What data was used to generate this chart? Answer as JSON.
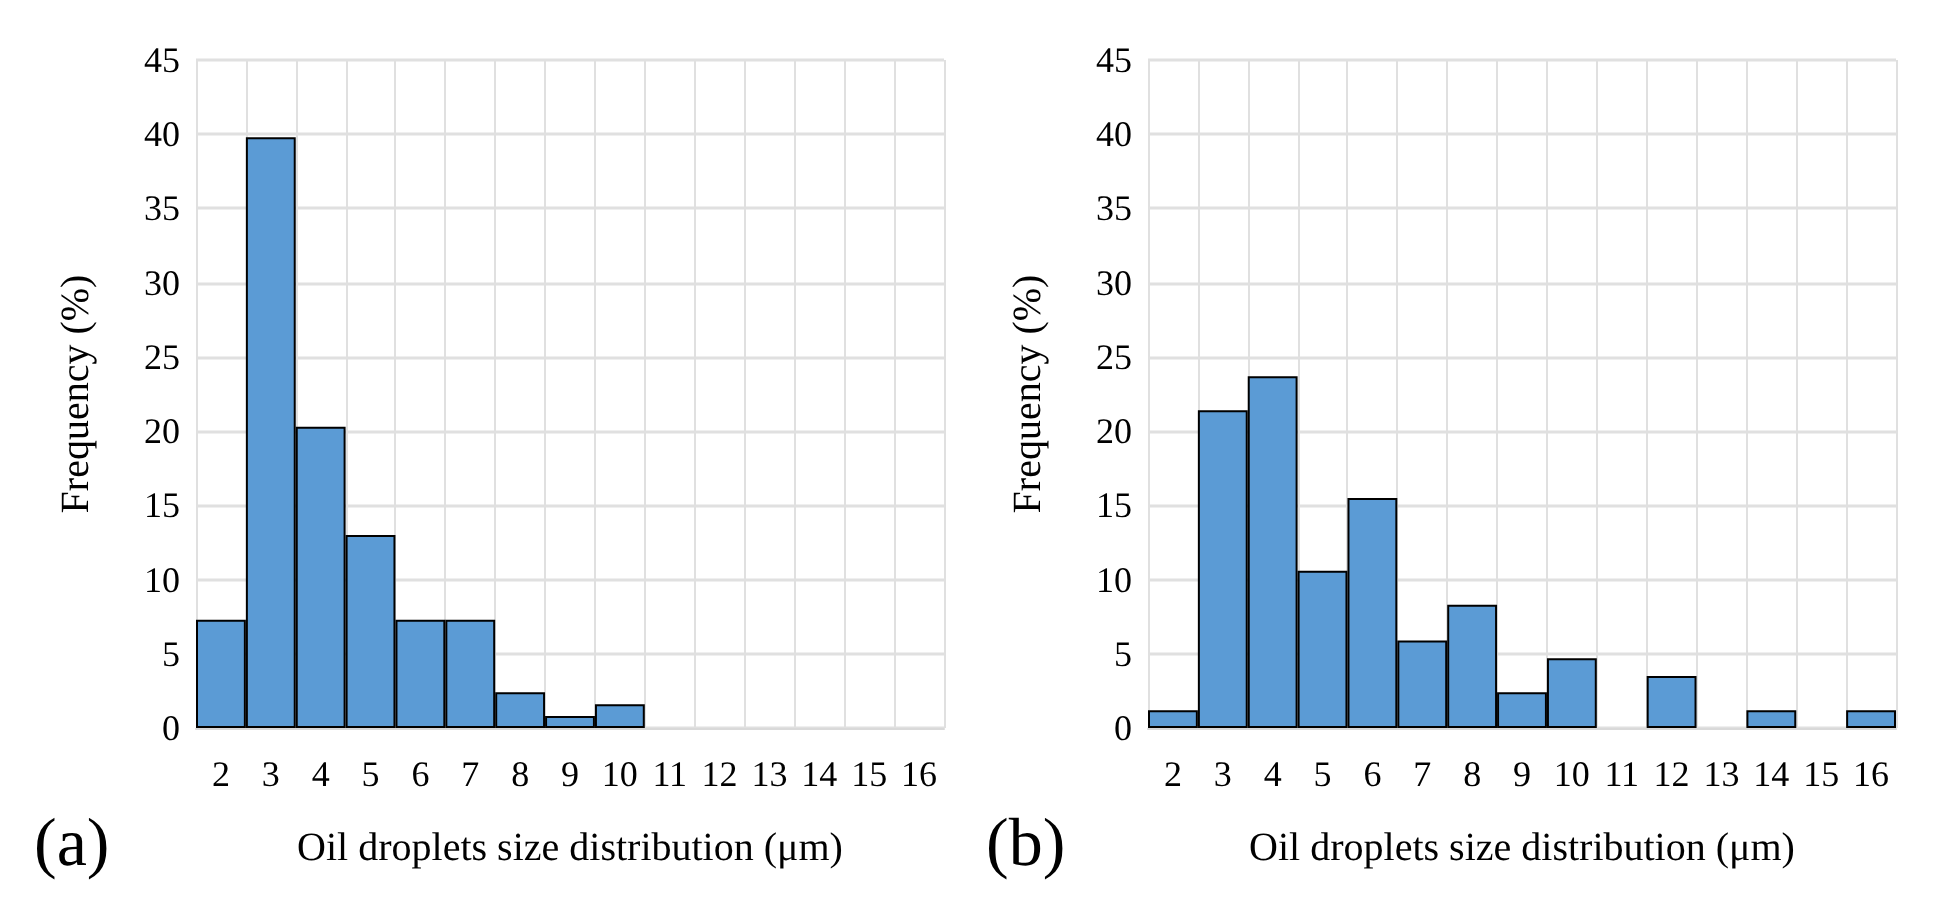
{
  "chart_data": [
    {
      "type": "bar",
      "title": "(a)",
      "xlabel": "Oil droplets size distribution (μm)",
      "ylabel": "Frequency (%)",
      "categories": [
        "2",
        "3",
        "4",
        "5",
        "6",
        "7",
        "8",
        "9",
        "10",
        "11",
        "12",
        "13",
        "14",
        "15",
        "16"
      ],
      "series": [
        {
          "color": "#5b9bd5",
          "values": [
            7.3,
            39.8,
            20.3,
            13.0,
            7.3,
            7.3,
            2.4,
            0.8,
            1.6,
            0,
            0,
            0,
            0,
            0,
            0
          ]
        }
      ],
      "ylim": [
        0,
        45
      ],
      "yticks": [
        0,
        5,
        10,
        15,
        20,
        25,
        30,
        35,
        40,
        45
      ],
      "grid": true
    },
    {
      "type": "bar",
      "title": "(b)",
      "xlabel": "Oil droplets size distribution (μm)",
      "ylabel": "Frequency (%)",
      "categories": [
        "2",
        "3",
        "4",
        "5",
        "6",
        "7",
        "8",
        "9",
        "10",
        "11",
        "12",
        "13",
        "14",
        "15",
        "16"
      ],
      "series": [
        {
          "color": "#5b9bd5",
          "values": [
            1.2,
            21.4,
            23.7,
            10.6,
            15.5,
            5.9,
            8.3,
            2.4,
            4.7,
            0,
            3.5,
            0,
            1.2,
            0,
            1.2
          ]
        }
      ],
      "ylim": [
        0,
        45
      ],
      "yticks": [
        0,
        5,
        10,
        15,
        20,
        25,
        30,
        35,
        40,
        45
      ],
      "grid": true
    }
  ]
}
